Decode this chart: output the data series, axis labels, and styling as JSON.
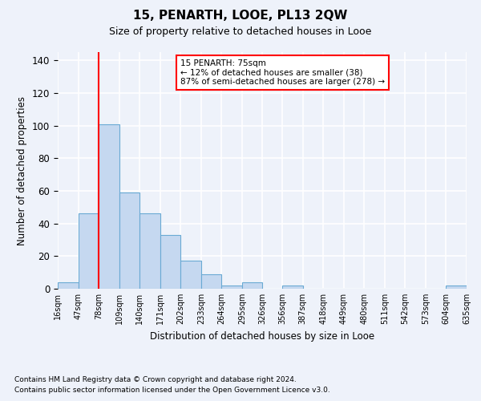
{
  "title": "15, PENARTH, LOOE, PL13 2QW",
  "subtitle": "Size of property relative to detached houses in Looe",
  "xlabel": "Distribution of detached houses by size in Looe",
  "ylabel": "Number of detached properties",
  "footnote1": "Contains HM Land Registry data © Crown copyright and database right 2024.",
  "footnote2": "Contains public sector information licensed under the Open Government Licence v3.0.",
  "annotation_line1": "15 PENARTH: 75sqm",
  "annotation_line2": "← 12% of detached houses are smaller (38)",
  "annotation_line3": "87% of semi-detached houses are larger (278) →",
  "bar_color": "#c5d8f0",
  "bar_edge_color": "#6aaad4",
  "vline_color": "red",
  "vline_x": 78,
  "ylim": [
    0,
    145
  ],
  "yticks": [
    0,
    20,
    40,
    60,
    80,
    100,
    120,
    140
  ],
  "bin_edges": [
    16,
    47,
    78,
    109,
    140,
    171,
    202,
    233,
    264,
    295,
    326,
    356,
    387,
    418,
    449,
    480,
    511,
    542,
    573,
    604,
    635
  ],
  "bin_labels": [
    "16sqm",
    "47sqm",
    "78sqm",
    "109sqm",
    "140sqm",
    "171sqm",
    "202sqm",
    "233sqm",
    "264sqm",
    "295sqm",
    "326sqm",
    "356sqm",
    "387sqm",
    "418sqm",
    "449sqm",
    "480sqm",
    "511sqm",
    "542sqm",
    "573sqm",
    "604sqm",
    "635sqm"
  ],
  "bar_heights": [
    4,
    46,
    101,
    59,
    46,
    33,
    17,
    9,
    2,
    4,
    0,
    2,
    0,
    0,
    0,
    0,
    0,
    0,
    0,
    2
  ],
  "background_color": "#eef2fa",
  "grid_color": "#ffffff",
  "annotation_box_color": "#ffffff",
  "annotation_box_edge": "red"
}
